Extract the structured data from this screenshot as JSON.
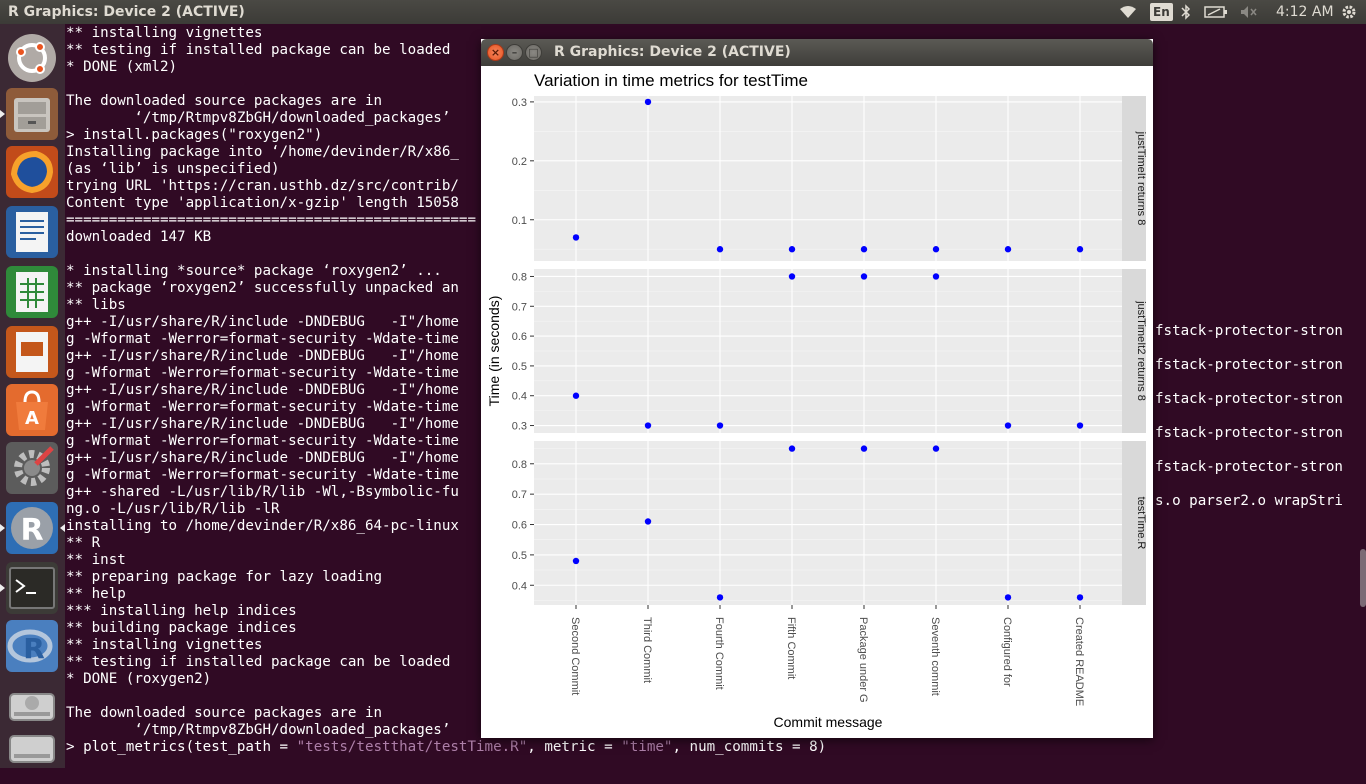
{
  "panel": {
    "title": "R Graphics: Device 2 (ACTIVE)",
    "lang": "En",
    "time": "4:12 AM"
  },
  "launcher": [
    {
      "name": "ubuntu-dash-icon"
    },
    {
      "name": "files-icon"
    },
    {
      "name": "firefox-icon"
    },
    {
      "name": "writer-icon"
    },
    {
      "name": "calc-icon"
    },
    {
      "name": "impress-icon"
    },
    {
      "name": "software-center-icon"
    },
    {
      "name": "system-settings-icon"
    },
    {
      "name": "r-icon"
    },
    {
      "name": "terminal-icon"
    },
    {
      "name": "rstudio-icon"
    },
    {
      "name": "disk-icon"
    },
    {
      "name": "disk2-icon"
    }
  ],
  "terminal": {
    "lines": [
      "** installing vignettes",
      "** testing if installed package can be loaded",
      "* DONE (xml2)",
      "",
      "The downloaded source packages are in",
      "        ‘/tmp/Rtmpv8ZbGH/downloaded_packages’",
      "> install.packages(\"roxygen2\")",
      "Installing package into ‘/home/devinder/R/x86_",
      "(as ‘lib’ is unspecified)",
      "trying URL 'https://cran.usthb.dz/src/contrib/",
      "Content type 'application/x-gzip' length 15058",
      "================================================",
      "downloaded 147 KB",
      "",
      "* installing *source* package ‘roxygen2’ ...",
      "** package ‘roxygen2’ successfully unpacked an",
      "** libs",
      "g++ -I/usr/share/R/include -DNDEBUG   -I\"/home",
      "g -Wformat -Werror=format-security -Wdate-time",
      "g++ -I/usr/share/R/include -DNDEBUG   -I\"/home",
      "g -Wformat -Werror=format-security -Wdate-time",
      "g++ -I/usr/share/R/include -DNDEBUG   -I\"/home",
      "g -Wformat -Werror=format-security -Wdate-time",
      "g++ -I/usr/share/R/include -DNDEBUG   -I\"/home",
      "g -Wformat -Werror=format-security -Wdate-time",
      "g++ -I/usr/share/R/include -DNDEBUG   -I\"/home",
      "g -Wformat -Werror=format-security -Wdate-time",
      "g++ -shared -L/usr/lib/R/lib -Wl,-Bsymbolic-fu",
      "ng.o -L/usr/lib/R/lib -lR",
      "installing to /home/devinder/R/x86_64-pc-linux",
      "** R",
      "** inst",
      "** preparing package for lazy loading",
      "** help",
      "*** installing help indices",
      "** building package indices",
      "** installing vignettes",
      "** testing if installed package can be loaded",
      "* DONE (roxygen2)",
      "",
      "The downloaded source packages are in",
      "        ‘/tmp/Rtmpv8ZbGH/downloaded_packages’"
    ],
    "last_cmd_prefix": "> plot_metrics(test_path = ",
    "last_cmd_s1": "\"tests/testthat/testTime.R\"",
    "last_cmd_mid": ", metric = ",
    "last_cmd_s2": "\"time\"",
    "last_cmd_suffix": ", num_commits = 8)",
    "right_lines": [
      "fstack-protector-stron",
      "fstack-protector-stron",
      "fstack-protector-stron",
      "fstack-protector-stron",
      "fstack-protector-stron",
      "s.o parser2.o wrapStri"
    ]
  },
  "rwindow": {
    "title": "R Graphics: Device 2 (ACTIVE)"
  },
  "chart_data": {
    "type": "scatter",
    "title": "Variation in time metrics for testTime",
    "xlabel": "Commit message",
    "ylabel": "Time (in seconds)",
    "categories": [
      "Second Commit",
      "Third Commit",
      "Fourth Commit",
      "Fifth Commit",
      "Package under G",
      "Seventh commit",
      "Configured for",
      "Created README"
    ],
    "point_color": "#0000ff",
    "panels": [
      {
        "strip": "justTimeIt returns 8",
        "ylim": [
          0.03,
          0.31
        ],
        "yticks": [
          0.1,
          0.2,
          0.3
        ],
        "ytick_labels": [
          "0.1",
          "0.2",
          "0.3"
        ],
        "values": [
          0.07,
          0.3,
          0.05,
          0.05,
          0.05,
          0.05,
          0.05,
          0.05
        ]
      },
      {
        "strip": "justTimeIt2 returns 8",
        "ylim": [
          0.275,
          0.825
        ],
        "yticks": [
          0.3,
          0.4,
          0.5,
          0.6,
          0.7,
          0.8
        ],
        "ytick_labels": [
          "0.3",
          "0.4",
          "0.5",
          "0.6",
          "0.7",
          "0.8"
        ],
        "values": [
          0.4,
          0.3,
          0.3,
          0.8,
          0.8,
          0.8,
          0.3,
          0.3
        ]
      },
      {
        "strip": "testTime.R",
        "ylim": [
          0.335,
          0.875
        ],
        "yticks": [
          0.4,
          0.5,
          0.6,
          0.7,
          0.8
        ],
        "ytick_labels": [
          "0.4",
          "0.5",
          "0.6",
          "0.7",
          "0.8"
        ],
        "values": [
          0.48,
          0.61,
          0.36,
          0.85,
          0.85,
          0.85,
          0.36,
          0.36
        ]
      }
    ]
  }
}
